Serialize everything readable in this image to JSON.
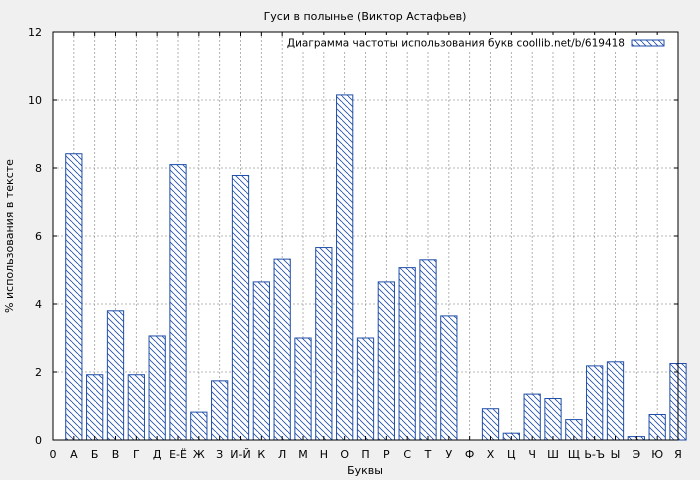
{
  "chart_data": {
    "type": "bar",
    "title": "Гуси в полынье (Виктор Астафьев)",
    "xlabel": "Буквы",
    "ylabel": "% использования в тексте",
    "ylim": [
      0,
      12
    ],
    "yticks": [
      "0",
      "2",
      "4",
      "6",
      "8",
      "10",
      "12"
    ],
    "grid": true,
    "legend_position": "top-right",
    "origin_label": "0",
    "categories": [
      "А",
      "Б",
      "В",
      "Г",
      "Д",
      "Е-Ё",
      "Ж",
      "З",
      "И-Й",
      "К",
      "Л",
      "М",
      "Н",
      "О",
      "П",
      "Р",
      "С",
      "Т",
      "У",
      "Ф",
      "Х",
      "Ц",
      "Ч",
      "Ш",
      "Щ",
      "Ь-Ъ",
      "Ы",
      "Э",
      "Ю",
      "Я"
    ],
    "series": [
      {
        "name": "Диаграмма частоты использования букв coollib.net/b/619418",
        "values": [
          8.42,
          1.92,
          3.8,
          1.92,
          3.06,
          8.1,
          0.82,
          1.74,
          7.78,
          4.65,
          5.32,
          3.0,
          5.66,
          10.15,
          3.0,
          4.65,
          5.07,
          5.3,
          3.65,
          0.0,
          0.92,
          0.2,
          1.35,
          1.22,
          0.6,
          2.18,
          2.3,
          0.1,
          0.75,
          2.25
        ]
      }
    ],
    "colors": {
      "bar_stroke": "#1f4ea8",
      "hatch": "#1f4ea8",
      "grid": "#a0a0a0",
      "plot_bg": "#ffffff",
      "page_bg": "#f0f0f0"
    }
  }
}
